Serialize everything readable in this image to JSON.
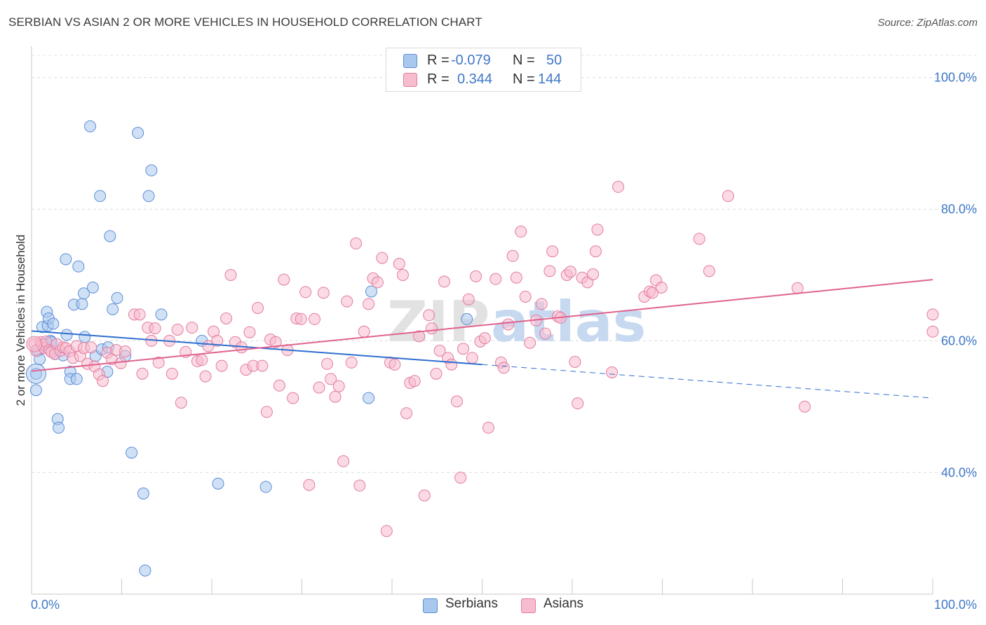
{
  "title": "SERBIAN VS ASIAN 2 OR MORE VEHICLES IN HOUSEHOLD CORRELATION CHART",
  "source": "Source: ZipAtlas.com",
  "watermark": {
    "zip": "ZIP",
    "atlas": "atlas"
  },
  "legend_top": {
    "r_label": "R =",
    "n_label": "N =",
    "rows": [
      {
        "r": "-0.079",
        "n": "50",
        "color": "#a9c8ee",
        "border": "#5b8ed6"
      },
      {
        "r": "0.344",
        "n": "144",
        "color": "#f7bccd",
        "border": "#e27c9f"
      }
    ]
  },
  "legend_bottom": [
    {
      "label": "Serbians",
      "color": "#a9c8ee",
      "border": "#5b8ed6"
    },
    {
      "label": "Asians",
      "color": "#f7bccd",
      "border": "#e27c9f"
    }
  ],
  "chart_data": {
    "type": "scatter",
    "title": "SERBIAN VS ASIAN 2 OR MORE VEHICLES IN HOUSEHOLD CORRELATION CHART",
    "ylabel": "2 or more Vehicles in Household",
    "xlabel": "",
    "x_tick_labels": [
      "0.0%",
      "100.0%"
    ],
    "y_tick_labels": [
      "100.0%",
      "80.0%",
      "60.0%",
      "40.0%"
    ],
    "y_ticks": [
      100,
      80,
      60,
      40
    ],
    "xlim": [
      0,
      100
    ],
    "ylim": [
      21.5,
      103.7
    ],
    "grid": true,
    "series": [
      {
        "name": "Serbians",
        "color": "#5b8ed6",
        "fill": "#a9c8ee",
        "line_color": "#2f6fd0",
        "trend": {
          "x0": 0,
          "y0": 61.5,
          "x1": 50,
          "y1": 56.4,
          "dash_to_x": 100,
          "dash_to_y": 51.3
        },
        "points": [
          [
            0.5,
            55.0
          ],
          [
            0.5,
            52.5
          ],
          [
            0.7,
            58.5
          ],
          [
            0.9,
            57.2
          ],
          [
            1.2,
            62.1
          ],
          [
            1.5,
            59.5
          ],
          [
            1.7,
            64.4
          ],
          [
            1.8,
            62.3
          ],
          [
            1.9,
            63.4
          ],
          [
            2.1,
            60.0
          ],
          [
            2.2,
            59.8
          ],
          [
            2.4,
            62.6
          ],
          [
            2.6,
            58.0
          ],
          [
            2.9,
            48.1
          ],
          [
            3.0,
            46.8
          ],
          [
            3.5,
            57.8
          ],
          [
            3.8,
            72.4
          ],
          [
            3.9,
            60.9
          ],
          [
            4.3,
            55.3
          ],
          [
            4.3,
            54.2
          ],
          [
            4.7,
            65.5
          ],
          [
            5.0,
            54.2
          ],
          [
            5.2,
            71.3
          ],
          [
            5.6,
            65.6
          ],
          [
            5.8,
            67.2
          ],
          [
            5.9,
            60.6
          ],
          [
            6.5,
            92.6
          ],
          [
            6.8,
            68.1
          ],
          [
            7.1,
            57.7
          ],
          [
            7.6,
            82.0
          ],
          [
            7.8,
            58.7
          ],
          [
            8.4,
            55.3
          ],
          [
            8.5,
            59.0
          ],
          [
            8.7,
            75.9
          ],
          [
            9.0,
            64.8
          ],
          [
            9.5,
            66.5
          ],
          [
            10.4,
            57.7
          ],
          [
            11.1,
            43.0
          ],
          [
            11.8,
            91.6
          ],
          [
            12.4,
            36.8
          ],
          [
            12.6,
            25.1
          ],
          [
            13.0,
            82.0
          ],
          [
            13.3,
            85.9
          ],
          [
            14.4,
            64.0
          ],
          [
            18.9,
            60.0
          ],
          [
            20.7,
            38.3
          ],
          [
            26.0,
            37.8
          ],
          [
            37.4,
            51.3
          ],
          [
            37.7,
            67.5
          ],
          [
            48.3,
            63.3
          ]
        ]
      },
      {
        "name": "Asians",
        "color": "#e27c9f",
        "fill": "#f7bccd",
        "line_color": "#e0628f",
        "trend": {
          "x0": 0,
          "y0": 55.4,
          "x1": 100,
          "y1": 69.3
        },
        "points": [
          [
            0.3,
            59.5
          ],
          [
            0.5,
            58.5
          ],
          [
            1.0,
            59.8
          ],
          [
            1.2,
            59.4
          ],
          [
            1.4,
            58.9
          ],
          [
            1.6,
            59.9
          ],
          [
            2.0,
            58.6
          ],
          [
            2.2,
            58.3
          ],
          [
            2.6,
            58.0
          ],
          [
            2.8,
            59.5
          ],
          [
            3.2,
            58.5
          ],
          [
            3.5,
            59.0
          ],
          [
            3.8,
            58.9
          ],
          [
            4.2,
            58.4
          ],
          [
            4.6,
            57.4
          ],
          [
            5.0,
            59.2
          ],
          [
            5.4,
            57.7
          ],
          [
            5.8,
            58.9
          ],
          [
            6.2,
            56.5
          ],
          [
            6.6,
            59.0
          ],
          [
            7.0,
            56.1
          ],
          [
            7.5,
            54.9
          ],
          [
            7.9,
            53.9
          ],
          [
            8.4,
            58.2
          ],
          [
            8.9,
            57.2
          ],
          [
            9.4,
            58.6
          ],
          [
            9.9,
            56.6
          ],
          [
            10.4,
            58.4
          ],
          [
            11.4,
            64.0
          ],
          [
            12.0,
            64.0
          ],
          [
            12.3,
            55.0
          ],
          [
            12.9,
            62.0
          ],
          [
            13.3,
            60.0
          ],
          [
            13.7,
            61.9
          ],
          [
            14.1,
            56.7
          ],
          [
            15.3,
            60.0
          ],
          [
            15.6,
            55.0
          ],
          [
            16.2,
            61.7
          ],
          [
            16.6,
            50.6
          ],
          [
            17.1,
            58.3
          ],
          [
            17.8,
            62.0
          ],
          [
            18.4,
            56.9
          ],
          [
            18.9,
            57.1
          ],
          [
            19.3,
            54.6
          ],
          [
            19.6,
            59.2
          ],
          [
            20.2,
            61.4
          ],
          [
            20.6,
            60.0
          ],
          [
            21.1,
            56.2
          ],
          [
            21.6,
            63.4
          ],
          [
            22.1,
            70.0
          ],
          [
            22.6,
            59.8
          ],
          [
            23.3,
            59.0
          ],
          [
            23.8,
            55.6
          ],
          [
            24.2,
            61.3
          ],
          [
            24.6,
            56.2
          ],
          [
            25.1,
            65.0
          ],
          [
            25.6,
            56.2
          ],
          [
            26.1,
            49.2
          ],
          [
            26.5,
            60.2
          ],
          [
            27.1,
            59.8
          ],
          [
            27.5,
            53.2
          ],
          [
            28.0,
            69.3
          ],
          [
            28.4,
            58.6
          ],
          [
            29.0,
            51.3
          ],
          [
            29.4,
            63.4
          ],
          [
            29.9,
            63.3
          ],
          [
            30.4,
            67.4
          ],
          [
            30.8,
            38.1
          ],
          [
            31.4,
            63.3
          ],
          [
            31.9,
            52.9
          ],
          [
            32.4,
            67.3
          ],
          [
            32.8,
            56.5
          ],
          [
            33.2,
            54.2
          ],
          [
            33.7,
            51.5
          ],
          [
            34.1,
            53.1
          ],
          [
            34.6,
            41.7
          ],
          [
            35.0,
            66.0
          ],
          [
            35.5,
            56.7
          ],
          [
            36.0,
            74.8
          ],
          [
            36.4,
            38.0
          ],
          [
            36.9,
            61.4
          ],
          [
            37.4,
            65.6
          ],
          [
            37.9,
            69.5
          ],
          [
            38.4,
            68.9
          ],
          [
            38.9,
            72.6
          ],
          [
            39.4,
            31.1
          ],
          [
            39.8,
            56.7
          ],
          [
            40.3,
            56.4
          ],
          [
            40.8,
            71.7
          ],
          [
            41.2,
            70.0
          ],
          [
            41.6,
            49.0
          ],
          [
            42.0,
            53.6
          ],
          [
            42.5,
            53.9
          ],
          [
            43.0,
            60.7
          ],
          [
            43.6,
            36.5
          ],
          [
            44.1,
            63.9
          ],
          [
            44.4,
            61.9
          ],
          [
            44.9,
            55.0
          ],
          [
            45.3,
            58.5
          ],
          [
            45.8,
            69.0
          ],
          [
            46.2,
            57.4
          ],
          [
            46.6,
            56.4
          ],
          [
            47.2,
            50.8
          ],
          [
            47.6,
            39.2
          ],
          [
            47.9,
            58.8
          ],
          [
            48.5,
            66.3
          ],
          [
            48.9,
            57.4
          ],
          [
            49.3,
            69.8
          ],
          [
            49.8,
            59.9
          ],
          [
            50.3,
            60.4
          ],
          [
            50.7,
            46.8
          ],
          [
            51.5,
            69.4
          ],
          [
            52.1,
            56.7
          ],
          [
            52.4,
            55.9
          ],
          [
            52.9,
            62.5
          ],
          [
            53.4,
            72.9
          ],
          [
            53.8,
            69.6
          ],
          [
            54.3,
            76.6
          ],
          [
            54.8,
            66.7
          ],
          [
            55.3,
            59.7
          ],
          [
            56.0,
            63.1
          ],
          [
            56.6,
            65.6
          ],
          [
            57.0,
            61.1
          ],
          [
            57.5,
            70.6
          ],
          [
            57.8,
            73.6
          ],
          [
            58.4,
            63.7
          ],
          [
            58.7,
            63.5
          ],
          [
            59.4,
            70.0
          ],
          [
            59.8,
            70.5
          ],
          [
            60.3,
            56.8
          ],
          [
            60.6,
            50.5
          ],
          [
            61.1,
            69.6
          ],
          [
            61.7,
            68.9
          ],
          [
            62.3,
            70.1
          ],
          [
            62.6,
            73.6
          ],
          [
            62.8,
            76.9
          ],
          [
            64.4,
            55.2
          ],
          [
            65.1,
            83.4
          ],
          [
            68.0,
            66.7
          ],
          [
            68.6,
            67.5
          ],
          [
            68.9,
            67.3
          ],
          [
            69.3,
            69.2
          ],
          [
            69.9,
            68.1
          ],
          [
            74.1,
            75.5
          ],
          [
            75.2,
            70.6
          ],
          [
            77.3,
            82.0
          ],
          [
            85.0,
            68.0
          ],
          [
            85.8,
            50.0
          ],
          [
            100.0,
            61.4
          ],
          [
            100.0,
            64.0
          ]
        ]
      }
    ]
  }
}
